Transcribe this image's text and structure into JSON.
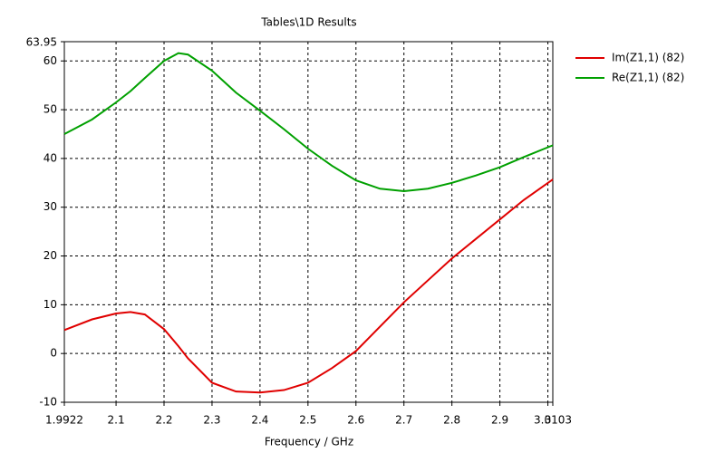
{
  "chart_data": {
    "type": "line",
    "title": "Tables\\1D Results",
    "x_label": "Frequency / GHz",
    "x": [
      1.9922,
      2.05,
      2.1,
      2.13,
      2.16,
      2.2,
      2.23,
      2.25,
      2.3,
      2.35,
      2.4,
      2.45,
      2.5,
      2.55,
      2.6,
      2.65,
      2.7,
      2.75,
      2.8,
      2.85,
      2.9,
      2.95,
      3.0103
    ],
    "series": [
      {
        "name": "Im(Z1,1) (82)",
        "color": "#e00000",
        "values": [
          4.8,
          7,
          8.2,
          8.5,
          8,
          5,
          1.5,
          -1,
          -6,
          -7.8,
          -8,
          -7.5,
          -6,
          -3,
          0.5,
          5.5,
          10.5,
          15,
          19.5,
          23.5,
          27.5,
          31.5,
          35.7
        ]
      },
      {
        "name": "Re(Z1,1) (82)",
        "color": "#00a000",
        "values": [
          45,
          48,
          51.5,
          53.8,
          56.5,
          60,
          61.6,
          61.3,
          58,
          53.5,
          49.8,
          46,
          42,
          38.5,
          35.5,
          33.8,
          33.3,
          33.8,
          35,
          36.5,
          38.2,
          40.3,
          42.7
        ]
      }
    ],
    "xlim": [
      1.9922,
      3.0103
    ],
    "xticks": [
      1.9922,
      2.1,
      2.2,
      2.3,
      2.4,
      2.5,
      2.6,
      2.7,
      2.8,
      2.9,
      3,
      3.0103
    ],
    "ylim": [
      -10,
      63.95
    ],
    "yticks": [
      -10,
      0,
      10,
      20,
      30,
      40,
      50,
      60,
      63.95
    ],
    "grid": true,
    "legend": "right"
  }
}
